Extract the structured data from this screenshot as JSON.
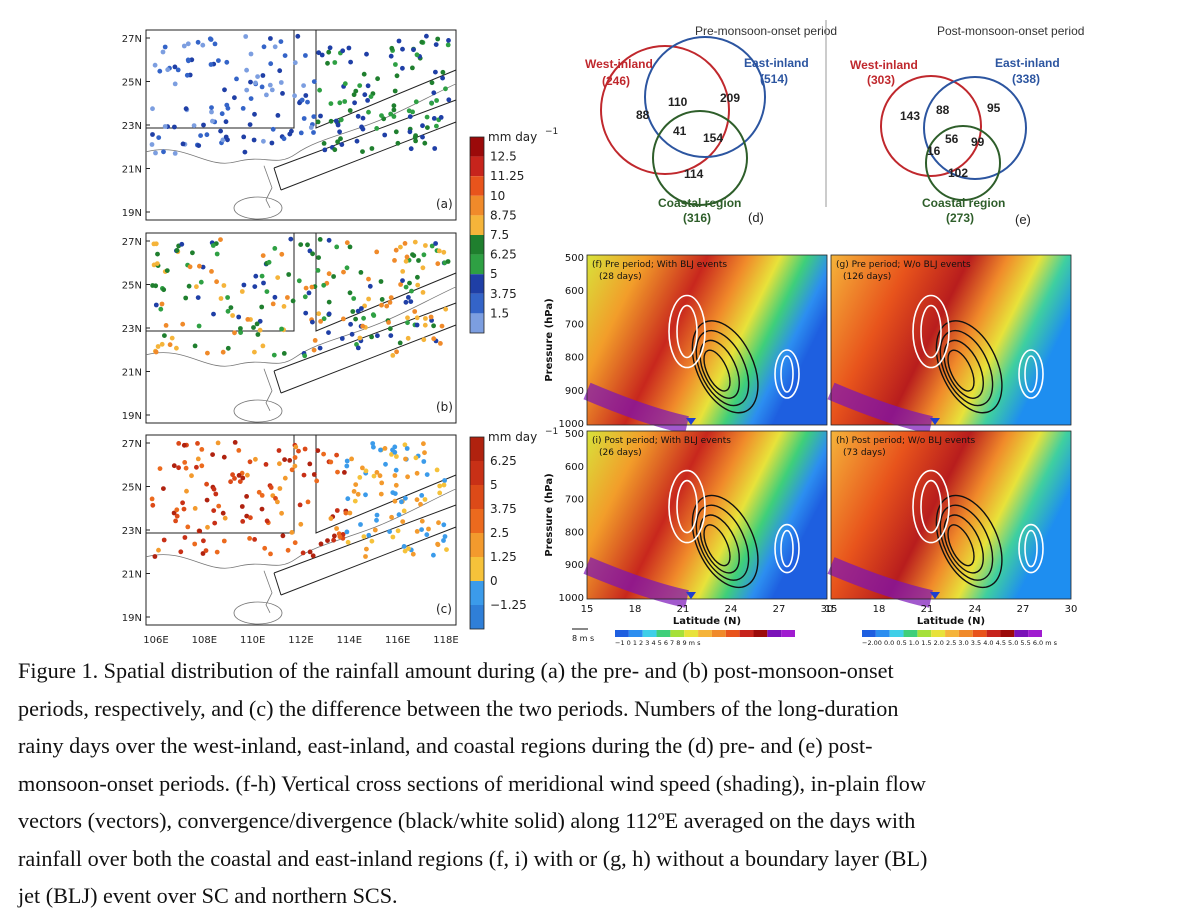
{
  "maps": {
    "lat_ticks": [
      "27N",
      "25N",
      "23N",
      "21N",
      "19N"
    ],
    "lon_ticks": [
      "106E",
      "108E",
      "110E",
      "112E",
      "114E",
      "116E",
      "118E"
    ],
    "panels": [
      {
        "label": "(a)"
      },
      {
        "label": "(b)"
      },
      {
        "label": "(c)"
      }
    ],
    "colorbar_top": {
      "unit": "mm day",
      "unit_exp": "−1",
      "ticks": [
        "12.5",
        "11.25",
        "10",
        "8.75",
        "7.5",
        "6.25",
        "5",
        "3.75",
        "1.5"
      ],
      "colors": [
        "#9b0a0a",
        "#c7241c",
        "#e8541c",
        "#f08a2a",
        "#f5b43a",
        "#1f7f2e",
        "#2ea043",
        "#1f3fa6",
        "#3464c8",
        "#7c9ee0"
      ]
    },
    "colorbar_bottom": {
      "unit": "mm day",
      "unit_exp": "−1",
      "ticks": [
        "6.25",
        "5",
        "3.75",
        "2.5",
        "1.25",
        "0",
        "−1.25"
      ],
      "colors": [
        "#b0220f",
        "#c83016",
        "#dc4a18",
        "#ec6a1e",
        "#f39a2d",
        "#f6c23a",
        "#3b9bea",
        "#2f7fd8"
      ]
    }
  },
  "venn": {
    "d": {
      "title": "Pre-monsoon-onset period",
      "west_label": "West-inland",
      "west_count": "(246)",
      "east_label": "East-inland",
      "east_count": "(514)",
      "coast_label": "Coastal region",
      "coast_count": "(316)",
      "only_west": "88",
      "west_east": "110",
      "only_east": "209",
      "all_three": "41",
      "east_coast": "154",
      "only_coast": "114",
      "panel": "(d)"
    },
    "e": {
      "title": "Post-monsoon-onset period",
      "west_label": "West-inland",
      "west_count": "(303)",
      "east_label": "East-inland",
      "east_count": "(338)",
      "coast_label": "Coastal region",
      "coast_count": "(273)",
      "only_west": "143",
      "west_east": "88",
      "only_east": "95",
      "all_three": "56",
      "west_coast": "16",
      "east_coast": "99",
      "only_coast": "102",
      "panel": "(e)"
    },
    "colors": {
      "west": "#c0282d",
      "east": "#2c55a0",
      "coast": "#2e5e2a"
    }
  },
  "cross_sections": {
    "panels": [
      {
        "label": "(f)  Pre period; With BLJ events",
        "days": "(28 days)"
      },
      {
        "label": "(g)  Pre period; W/o BLJ events",
        "days": "(126 days)"
      },
      {
        "label": "(i)  Post period; With BLJ events",
        "days": "(26 days)"
      },
      {
        "label": "(h)  Post period; W/o BLJ events",
        "days": "(73 days)"
      }
    ],
    "ylabel": "Pressure (hPa)",
    "xlabel": "Latitude (N)",
    "y_ticks": [
      "500",
      "600",
      "700",
      "800",
      "900",
      "1000"
    ],
    "x_ticks": [
      "15",
      "18",
      "21",
      "24",
      "27",
      "30"
    ],
    "vector_ref": "8 m s",
    "cbar_left_ticks": "−1 0 1 2 3 4 5 6 7 8 9 m s",
    "cbar_right_ticks": "−2.00 0.0 0.5 1.0 1.5 2.0 2.5 3.0 3.5 4.0 4.5 5.0 5.5 6.0 m s"
  },
  "caption": {
    "lines": [
      "Figure 1. Spatial distribution of the rainfall amount during (a) the pre- and (b) post-monsoon-onset",
      "periods, respectively, and (c) the difference between the two periods. Numbers of the long-duration",
      "rainy days over the west-inland, east-inland, and coastal regions during the (d) pre- and (e) post-",
      "monsoon-onset periods. (f-h) Vertical cross sections of meridional wind speed (shading), in-plain flow",
      "vectors (vectors), convergence/divergence (black/white solid) along 112ºE averaged on the days with",
      "rainfall over both the coastal and east-inland regions (f, i) with or (g, h) without a boundary layer (BL)",
      "jet (BLJ) event over SC and northern SCS."
    ]
  }
}
